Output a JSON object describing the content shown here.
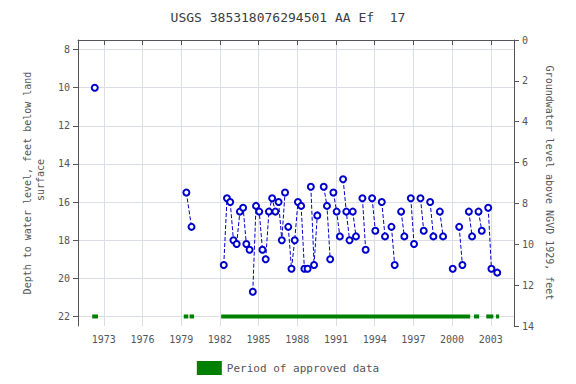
{
  "chart_data": {
    "type": "line",
    "title": "USGS 385318076294501 AA Ef  17",
    "ylabel": "Depth to water level, feet below land\n surface",
    "y2label": "Groundwater level above NGVD 1929, feet",
    "xlim": [
      1971.0,
      2004.8
    ],
    "xticks": [
      1973,
      1976,
      1979,
      1982,
      1985,
      1988,
      1991,
      1994,
      1997,
      2000,
      2003
    ],
    "ylim": [
      22.5,
      7.5
    ],
    "yticks": [
      8,
      10,
      12,
      14,
      16,
      18,
      20,
      22
    ],
    "y2lim": [
      14,
      0
    ],
    "y2ticks": [
      0,
      2,
      4,
      6,
      8,
      10,
      12,
      14
    ],
    "grid": true,
    "legend": "bottom",
    "color": "#0000cc",
    "marker": "circle",
    "line_style": "dashed",
    "series": [
      {
        "x": [
          1972.3
        ],
        "values": [
          10.0
        ]
      },
      {
        "x": [
          1979.4,
          1979.8
        ],
        "values": [
          15.5,
          17.3
        ]
      },
      {
        "x": [
          1982.3,
          1982.55,
          1982.8,
          1983.05
        ],
        "values": [
          19.3,
          15.8,
          16.0,
          18.0
        ]
      },
      {
        "x": [
          1983.3,
          1983.55,
          1983.8,
          1984.05,
          1984.3
        ],
        "values": [
          18.2,
          16.5,
          16.3,
          18.2,
          18.5
        ]
      },
      {
        "x": [
          1984.55,
          1984.8,
          1985.05,
          1985.3
        ],
        "values": [
          20.7,
          16.2,
          16.5,
          18.5
        ]
      },
      {
        "x": [
          1985.55,
          1985.8,
          1986.05,
          1986.3
        ],
        "values": [
          19.0,
          16.5,
          15.8,
          16.5
        ]
      },
      {
        "x": [
          1986.55,
          1986.8,
          1987.05
        ],
        "values": [
          16.0,
          18.0,
          15.5
        ]
      },
      {
        "x": [
          1987.3,
          1987.55,
          1987.8,
          1988.05
        ],
        "values": [
          17.3,
          19.5,
          18.0,
          16.0
        ]
      },
      {
        "x": [
          1988.3,
          1988.55,
          1988.8
        ],
        "values": [
          16.2,
          19.5,
          19.5
        ]
      },
      {
        "x": [
          1989.05,
          1989.3,
          1989.55
        ],
        "values": [
          15.2,
          19.3,
          16.7
        ]
      },
      {
        "x": [
          1990.05,
          1990.3,
          1990.55
        ],
        "values": [
          15.2,
          16.2,
          19.0
        ]
      },
      {
        "x": [
          1990.8,
          1991.05,
          1991.3
        ],
        "values": [
          15.5,
          16.5,
          17.8
        ]
      },
      {
        "x": [
          1991.55,
          1991.8,
          1992.05
        ],
        "values": [
          14.8,
          16.5,
          18.0
        ]
      },
      {
        "x": [
          1992.3,
          1992.55
        ],
        "values": [
          16.5,
          17.8
        ]
      },
      {
        "x": [
          1993.05,
          1993.3
        ],
        "values": [
          15.8,
          18.5
        ]
      },
      {
        "x": [
          1993.8,
          1994.05
        ],
        "values": [
          15.8,
          17.5
        ]
      },
      {
        "x": [
          1994.55,
          1994.8
        ],
        "values": [
          16.0,
          17.8
        ]
      },
      {
        "x": [
          1995.3,
          1995.55
        ],
        "values": [
          17.3,
          19.3
        ]
      },
      {
        "x": [
          1996.05,
          1996.3
        ],
        "values": [
          16.5,
          17.8
        ]
      },
      {
        "x": [
          1996.8,
          1997.05
        ],
        "values": [
          15.8,
          18.2
        ]
      },
      {
        "x": [
          1997.55,
          1997.8
        ],
        "values": [
          15.8,
          17.5
        ]
      },
      {
        "x": [
          1998.3,
          1998.55
        ],
        "values": [
          16.0,
          17.8
        ]
      },
      {
        "x": [
          1999.05,
          1999.3
        ],
        "values": [
          16.5,
          17.8
        ]
      },
      {
        "x": [
          2000.05
        ],
        "values": [
          19.5
        ]
      },
      {
        "x": [
          2000.55,
          2000.8
        ],
        "values": [
          17.3,
          19.3
        ]
      },
      {
        "x": [
          2001.3,
          2001.55
        ],
        "values": [
          16.5,
          17.8
        ]
      },
      {
        "x": [
          2002.05,
          2002.3
        ],
        "values": [
          16.5,
          17.5
        ]
      },
      {
        "x": [
          2002.8,
          2003.05
        ],
        "values": [
          16.3,
          19.5
        ]
      },
      {
        "x": [
          2003.5
        ],
        "values": [
          19.7
        ]
      },
      {
        "name": "Period of approved data",
        "color": "#008000",
        "line_style": "solid",
        "marker": "none",
        "y": 22.0,
        "segments": [
          [
            1972.1,
            1972.55
          ],
          [
            1979.2,
            1979.55
          ],
          [
            1979.65,
            1980.0
          ],
          [
            1982.1,
            2001.4
          ],
          [
            2001.7,
            2002.1
          ],
          [
            2002.65,
            2003.2
          ],
          [
            2003.4,
            2003.65
          ]
        ]
      }
    ]
  }
}
